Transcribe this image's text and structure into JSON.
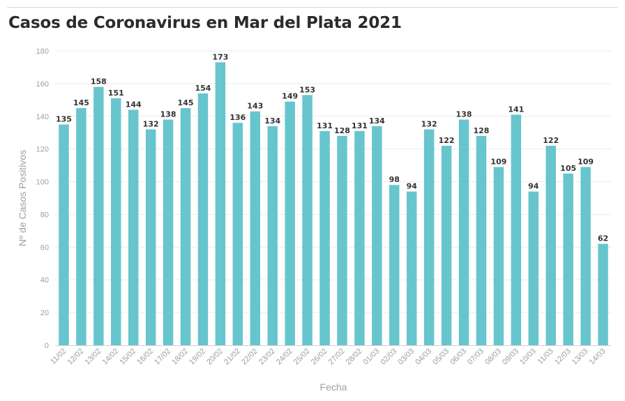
{
  "header": {
    "title": "Casos de Coronavirus en Mar del Plata 2021"
  },
  "chart_data": {
    "type": "bar",
    "title": "Casos de Coronavirus en Mar del Plata 2021",
    "xlabel": "Fecha",
    "ylabel": "Nº de Casos Positivos",
    "ylim": [
      0,
      180
    ],
    "yticks": [
      0,
      20,
      40,
      60,
      80,
      100,
      120,
      140,
      160,
      180
    ],
    "grid": true,
    "categories": [
      "11/02",
      "12/02",
      "13/02",
      "14/02",
      "15/02",
      "16/02",
      "17/02",
      "18/02",
      "19/02",
      "20/02",
      "21/02",
      "22/02",
      "23/02",
      "24/02",
      "25/02",
      "26/02",
      "27/02",
      "28/02",
      "01/03",
      "02/03",
      "03/03",
      "04/03",
      "05/03",
      "06/03",
      "07/03",
      "08/03",
      "09/03",
      "10/03",
      "11/03",
      "12/03",
      "13/03",
      "14/03"
    ],
    "values": [
      135,
      145,
      158,
      151,
      144,
      132,
      138,
      145,
      154,
      173,
      136,
      143,
      134,
      149,
      153,
      131,
      128,
      131,
      134,
      98,
      94,
      132,
      122,
      138,
      128,
      109,
      141,
      94,
      122,
      105,
      109,
      62
    ],
    "bar_color": "#67c5cd"
  }
}
